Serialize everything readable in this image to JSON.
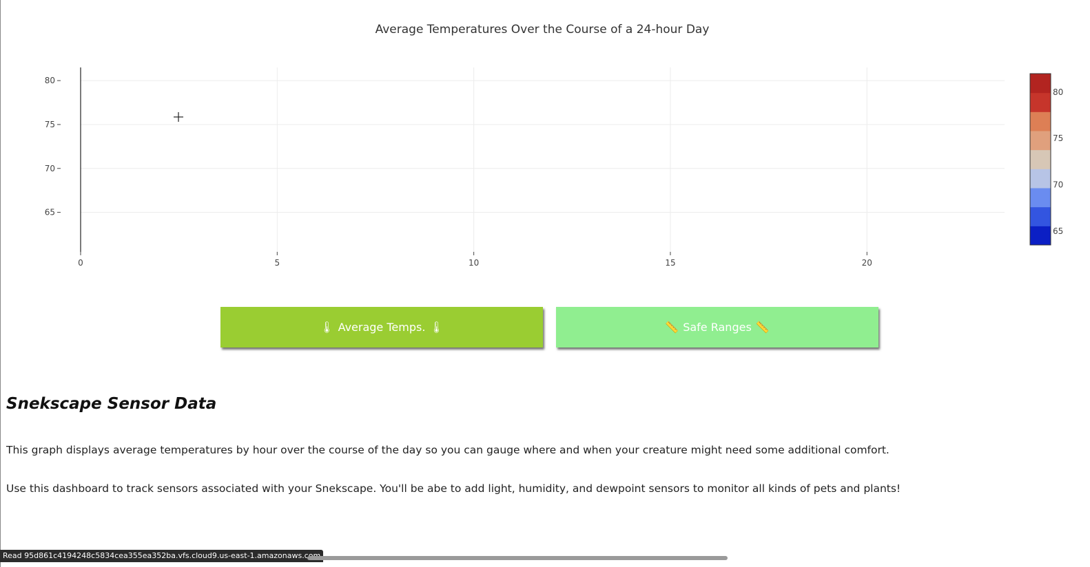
{
  "chart_data": {
    "type": "scatter",
    "title": "Average Temperatures Over the Course of a 24-hour Day",
    "xlim": [
      0,
      23.5
    ],
    "ylim": [
      60.5,
      81.5
    ],
    "x_ticks": [
      0,
      5,
      10,
      15,
      20
    ],
    "y_ticks": [
      65,
      70,
      75,
      80
    ],
    "grid": true,
    "series": [
      {
        "x": [],
        "y": []
      }
    ],
    "colorbar": {
      "range": [
        63.5,
        82
      ],
      "ticks": [
        65,
        70,
        75,
        80
      ],
      "colors": [
        "#0b1fc4",
        "#3355e0",
        "#6a8cf0",
        "#b7c4e6",
        "#d7c7b6",
        "#e0a07d",
        "#dd7f55",
        "#c6352b",
        "#b22420"
      ]
    }
  },
  "buttons": {
    "average": {
      "label": "Average Temps.",
      "color": "#9acd32",
      "icon": "thermometer-icon"
    },
    "safe": {
      "label": "Safe Ranges",
      "color": "#90ee90",
      "icon": "ruler-icon"
    }
  },
  "content": {
    "heading": "Snekscape Sensor Data",
    "paragraph1": "This graph displays average temperatures by hour over the course of the day so you can gauge where and when your creature might need some additional comfort.",
    "paragraph2": "Use this dashboard to track sensors associated with your Snekscape. You'll be abe to add light, humidity, and dewpoint sensors to monitor all kinds of pets and plants!"
  },
  "statusbar": {
    "text": "Read 95d861c4194248c5834cea355ea352ba.vfs.cloud9.us-east-1.amazonaws.com"
  }
}
